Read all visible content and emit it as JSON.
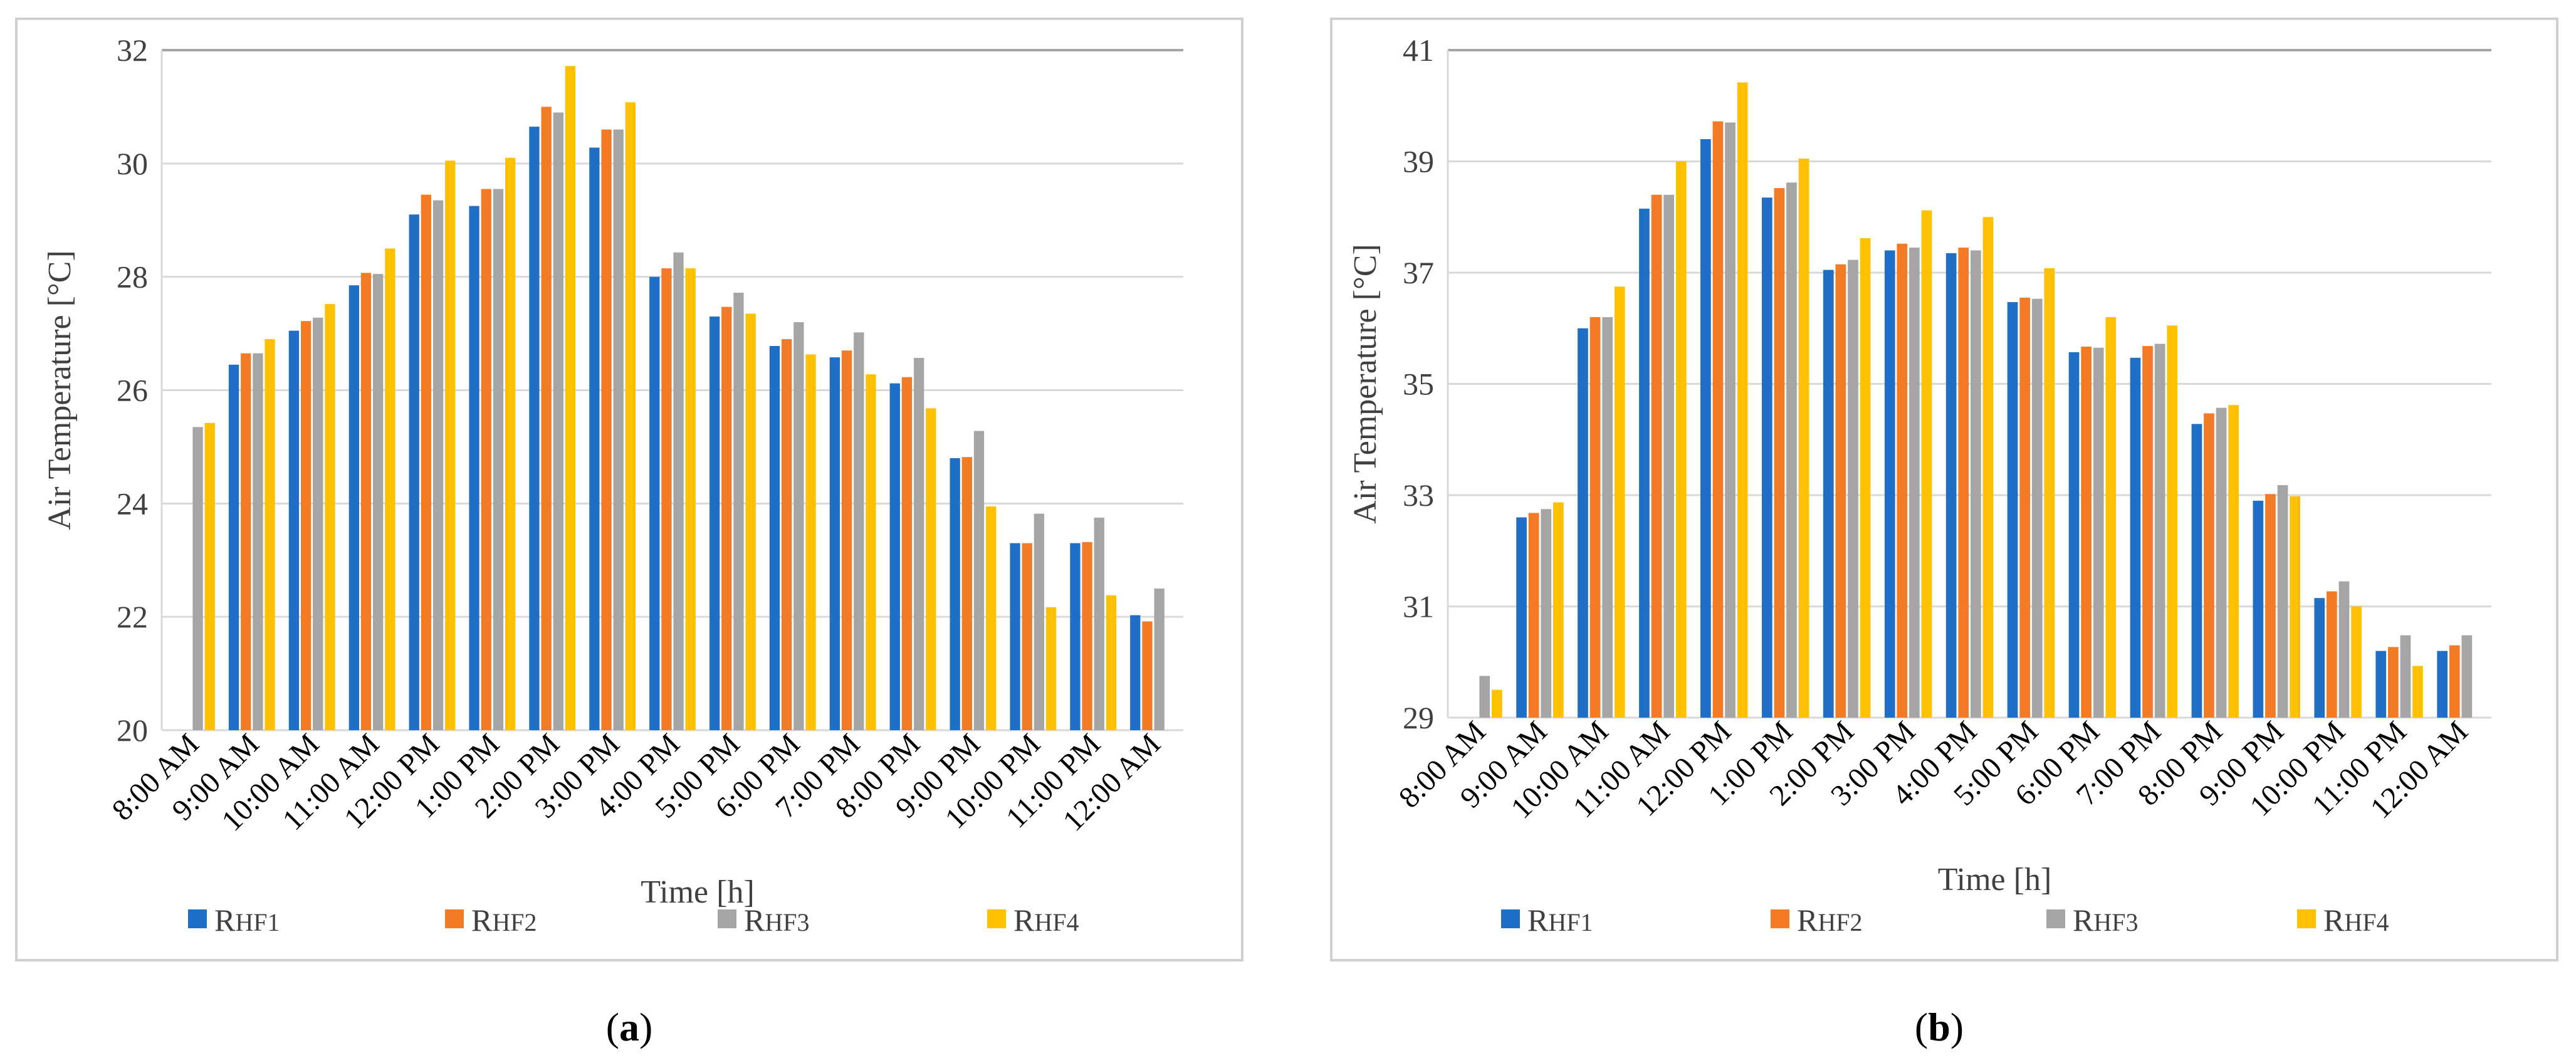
{
  "colors": {
    "RHF1": "#1f6fc6",
    "RHF2": "#f47b26",
    "RHF3": "#a5a5a5",
    "RHF4": "#ffc000"
  },
  "chart_data": [
    {
      "type": "bar",
      "panel_label": "(a)",
      "title": "",
      "xlabel": "Time [h]",
      "ylabel": "Air  Temperature [°C]",
      "ylim": [
        20,
        32
      ],
      "yticks": [
        20,
        22,
        24,
        26,
        28,
        30,
        32
      ],
      "grid": true,
      "legend_position": "bottom",
      "categories": [
        "8:00 AM",
        "9:00 AM",
        "10:00 AM",
        "11:00 AM",
        "12:00 PM",
        "1:00 PM",
        "2:00 PM",
        "3:00 PM",
        "4:00 PM",
        "5:00 PM",
        "6:00 PM",
        "7:00 PM",
        "8:00 PM",
        "9:00 PM",
        "10:00 PM",
        "11:00 PM",
        "12:00 AM"
      ],
      "series": [
        {
          "name": "RHF1",
          "values": [
            null,
            26.45,
            27.05,
            27.85,
            29.1,
            29.25,
            30.65,
            30.28,
            28.0,
            27.3,
            26.78,
            26.58,
            26.12,
            24.8,
            23.3,
            23.3,
            22.03
          ]
        },
        {
          "name": "RHF2",
          "values": [
            null,
            26.65,
            27.22,
            28.07,
            29.45,
            29.55,
            31.0,
            30.6,
            28.15,
            27.47,
            26.9,
            26.7,
            26.23,
            24.82,
            23.3,
            23.32,
            21.92
          ]
        },
        {
          "name": "RHF3",
          "values": [
            25.35,
            26.65,
            27.28,
            28.05,
            29.35,
            29.55,
            30.9,
            30.6,
            28.43,
            27.72,
            27.2,
            27.02,
            26.57,
            25.28,
            23.82,
            23.75,
            22.5
          ]
        },
        {
          "name": "RHF4",
          "values": [
            25.42,
            26.9,
            27.52,
            28.5,
            30.05,
            30.1,
            31.72,
            31.08,
            28.15,
            27.35,
            26.63,
            26.28,
            25.68,
            23.95,
            22.17,
            22.38,
            null
          ]
        }
      ]
    },
    {
      "type": "bar",
      "panel_label": "(b)",
      "title": "",
      "xlabel": "Time [h]",
      "ylabel": "Air  Temperature [°C]",
      "ylim": [
        29,
        41
      ],
      "yticks": [
        29,
        31,
        33,
        35,
        37,
        39,
        41
      ],
      "grid": true,
      "legend_position": "bottom",
      "categories": [
        "8:00 AM",
        "9:00 AM",
        "10:00 AM",
        "11:00 AM",
        "12:00 PM",
        "1:00 PM",
        "2:00 PM",
        "3:00 PM",
        "4:00 PM",
        "5:00 PM",
        "6:00 PM",
        "7:00 PM",
        "8:00 PM",
        "9:00 PM",
        "10:00 PM",
        "11:00 PM",
        "12:00 AM"
      ],
      "series": [
        {
          "name": "RHF1",
          "values": [
            null,
            32.6,
            36.0,
            38.15,
            39.4,
            38.35,
            37.05,
            37.4,
            37.35,
            36.47,
            35.57,
            35.47,
            34.28,
            32.9,
            31.15,
            30.2,
            30.2
          ]
        },
        {
          "name": "RHF2",
          "values": [
            null,
            32.68,
            36.2,
            38.4,
            39.72,
            38.52,
            37.15,
            37.52,
            37.45,
            36.55,
            35.67,
            35.68,
            34.47,
            33.02,
            31.27,
            30.27,
            30.3
          ]
        },
        {
          "name": "RHF3",
          "values": [
            29.75,
            32.75,
            36.2,
            38.4,
            39.7,
            38.62,
            37.23,
            37.45,
            37.4,
            36.53,
            35.65,
            35.72,
            34.57,
            33.18,
            31.45,
            30.48,
            30.48
          ]
        },
        {
          "name": "RHF4",
          "values": [
            29.5,
            32.87,
            36.75,
            39.0,
            40.42,
            39.05,
            37.62,
            38.12,
            38.0,
            37.08,
            36.2,
            36.05,
            34.62,
            32.98,
            31.0,
            29.93,
            null
          ]
        }
      ]
    }
  ]
}
